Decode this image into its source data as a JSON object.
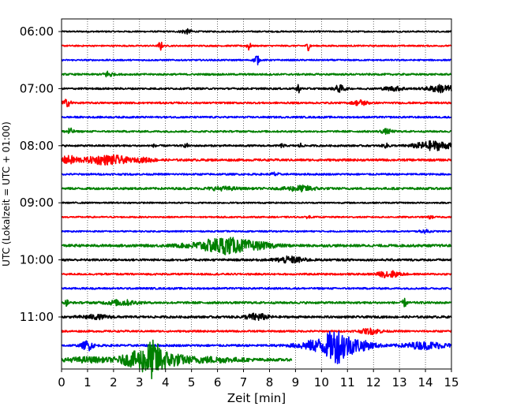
{
  "chart_data": {
    "type": "line",
    "title": "",
    "xlabel": "Zeit  [min]",
    "ylabel": "UTC (Lokalzeit = UTC + 01:00)",
    "xlim": [
      0,
      15
    ],
    "x_ticks": [
      "0",
      "1",
      "2",
      "3",
      "4",
      "5",
      "6",
      "7",
      "8",
      "9",
      "10",
      "11",
      "12",
      "13",
      "14",
      "15"
    ],
    "y_tick_labels": [
      "06:00",
      "07:00",
      "08:00",
      "09:00",
      "10:00",
      "11:00"
    ],
    "trace_start": "06:00",
    "trace_interval_min": 15,
    "colors": [
      "#000000",
      "#ff0000",
      "#0000ff",
      "#008000"
    ],
    "grid": "vertical dotted lines at each minute",
    "rows": [
      {
        "start": "06:00",
        "color": "#000000",
        "noise": 0.2,
        "end_min": 15,
        "events": [
          {
            "t": 4.8,
            "a": 0.6,
            "w": 0.15
          }
        ]
      },
      {
        "start": "06:15",
        "color": "#ff0000",
        "noise": 0.2,
        "end_min": 15,
        "events": [
          {
            "t": 3.8,
            "a": 1.4,
            "w": 0.05
          },
          {
            "t": 7.2,
            "a": 1.3,
            "w": 0.05
          },
          {
            "t": 9.5,
            "a": 1.2,
            "w": 0.05
          }
        ]
      },
      {
        "start": "06:30",
        "color": "#0000ff",
        "noise": 0.2,
        "end_min": 15,
        "events": [
          {
            "t": 7.5,
            "a": 1.7,
            "w": 0.06
          }
        ]
      },
      {
        "start": "06:45",
        "color": "#008000",
        "noise": 0.25,
        "end_min": 15,
        "events": [
          {
            "t": 1.8,
            "a": 0.9,
            "w": 0.12
          }
        ]
      },
      {
        "start": "07:00",
        "color": "#000000",
        "noise": 0.25,
        "end_min": 15,
        "events": [
          {
            "t": 9.1,
            "a": 1.2,
            "w": 0.05
          },
          {
            "t": 10.7,
            "a": 0.9,
            "w": 0.15
          },
          {
            "t": 12.8,
            "a": 0.5,
            "w": 0.3
          },
          {
            "t": 14.6,
            "a": 1.0,
            "w": 0.35
          }
        ]
      },
      {
        "start": "07:15",
        "color": "#ff0000",
        "noise": 0.25,
        "end_min": 15,
        "events": [
          {
            "t": 0.2,
            "a": 0.9,
            "w": 0.12
          },
          {
            "t": 11.5,
            "a": 0.7,
            "w": 0.2
          }
        ]
      },
      {
        "start": "07:30",
        "color": "#0000ff",
        "noise": 0.25,
        "end_min": 15,
        "events": []
      },
      {
        "start": "07:45",
        "color": "#008000",
        "noise": 0.25,
        "end_min": 15,
        "events": [
          {
            "t": 0.3,
            "a": 0.9,
            "w": 0.1
          },
          {
            "t": 12.5,
            "a": 0.6,
            "w": 0.15
          }
        ]
      },
      {
        "start": "08:00",
        "color": "#000000",
        "noise": 0.25,
        "end_min": 15,
        "events": [
          {
            "t": 3.6,
            "a": 0.5,
            "w": 0.05
          },
          {
            "t": 4.8,
            "a": 0.6,
            "w": 0.05
          },
          {
            "t": 8.5,
            "a": 0.6,
            "w": 0.05
          },
          {
            "t": 9.2,
            "a": 0.6,
            "w": 0.05
          },
          {
            "t": 12.5,
            "a": 0.5,
            "w": 0.1
          },
          {
            "t": 14.3,
            "a": 1.2,
            "w": 0.5
          }
        ]
      },
      {
        "start": "08:15",
        "color": "#ff0000",
        "noise": 0.3,
        "end_min": 15,
        "events": [
          {
            "t": 0.3,
            "a": 1.0,
            "w": 0.3
          },
          {
            "t": 1.4,
            "a": 0.9,
            "w": 0.35
          },
          {
            "t": 2.1,
            "a": 1.0,
            "w": 0.35
          },
          {
            "t": 3.2,
            "a": 0.5,
            "w": 0.3
          }
        ]
      },
      {
        "start": "08:30",
        "color": "#0000ff",
        "noise": 0.25,
        "end_min": 15,
        "events": [
          {
            "t": 8.2,
            "a": 0.5,
            "w": 0.1
          }
        ]
      },
      {
        "start": "08:45",
        "color": "#008000",
        "noise": 0.3,
        "end_min": 15,
        "events": [
          {
            "t": 9.2,
            "a": 0.7,
            "w": 0.4
          },
          {
            "t": 6.2,
            "a": 0.4,
            "w": 0.4
          }
        ]
      },
      {
        "start": "09:00",
        "color": "#000000",
        "noise": 0.2,
        "end_min": 15,
        "events": []
      },
      {
        "start": "09:15",
        "color": "#ff0000",
        "noise": 0.2,
        "end_min": 15,
        "events": [
          {
            "t": 9.5,
            "a": 0.6,
            "w": 0.05
          },
          {
            "t": 14.2,
            "a": 0.6,
            "w": 0.05
          }
        ]
      },
      {
        "start": "09:30",
        "color": "#0000ff",
        "noise": 0.2,
        "end_min": 15,
        "events": [
          {
            "t": 14.0,
            "a": 0.4,
            "w": 0.15
          }
        ]
      },
      {
        "start": "09:45",
        "color": "#008000",
        "noise": 0.35,
        "end_min": 15,
        "events": [
          {
            "t": 5.8,
            "a": 0.9,
            "w": 0.8
          },
          {
            "t": 6.3,
            "a": 1.3,
            "w": 0.5
          },
          {
            "t": 7.4,
            "a": 0.8,
            "w": 0.6
          }
        ]
      },
      {
        "start": "10:00",
        "color": "#000000",
        "noise": 0.3,
        "end_min": 15,
        "events": [
          {
            "t": 8.8,
            "a": 0.8,
            "w": 0.4
          }
        ]
      },
      {
        "start": "10:15",
        "color": "#ff0000",
        "noise": 0.25,
        "end_min": 15,
        "events": [
          {
            "t": 12.6,
            "a": 0.9,
            "w": 0.3
          }
        ]
      },
      {
        "start": "10:30",
        "color": "#0000ff",
        "noise": 0.25,
        "end_min": 15,
        "events": []
      },
      {
        "start": "10:45",
        "color": "#008000",
        "noise": 0.3,
        "end_min": 15,
        "events": [
          {
            "t": 0.2,
            "a": 0.8,
            "w": 0.05
          },
          {
            "t": 2.3,
            "a": 0.7,
            "w": 0.4
          },
          {
            "t": 13.2,
            "a": 1.0,
            "w": 0.06
          }
        ]
      },
      {
        "start": "11:00",
        "color": "#000000",
        "noise": 0.3,
        "end_min": 15,
        "events": [
          {
            "t": 7.5,
            "a": 0.9,
            "w": 0.3
          },
          {
            "t": 1.3,
            "a": 0.5,
            "w": 0.4
          }
        ]
      },
      {
        "start": "11:15",
        "color": "#ff0000",
        "noise": 0.25,
        "end_min": 15,
        "events": [
          {
            "t": 11.9,
            "a": 0.7,
            "w": 0.3
          }
        ]
      },
      {
        "start": "11:30",
        "color": "#0000ff",
        "noise": 0.3,
        "end_min": 15,
        "events": [
          {
            "t": 1.0,
            "a": 1.3,
            "w": 0.15
          },
          {
            "t": 10.0,
            "a": 1.6,
            "w": 0.6
          },
          {
            "t": 10.6,
            "a": 3.3,
            "w": 0.3
          },
          {
            "t": 11.3,
            "a": 1.5,
            "w": 0.5
          },
          {
            "t": 14.0,
            "a": 0.9,
            "w": 0.6
          }
        ]
      },
      {
        "start": "11:45",
        "color": "#008000",
        "noise": 0.35,
        "end_min": 8.85,
        "events": [
          {
            "t": 1.0,
            "a": 0.6,
            "w": 0.6
          },
          {
            "t": 3.0,
            "a": 2.2,
            "w": 0.5
          },
          {
            "t": 3.5,
            "a": 3.4,
            "w": 0.25
          },
          {
            "t": 4.1,
            "a": 1.5,
            "w": 0.4
          },
          {
            "t": 5.5,
            "a": 0.7,
            "w": 1.0
          }
        ]
      }
    ]
  }
}
